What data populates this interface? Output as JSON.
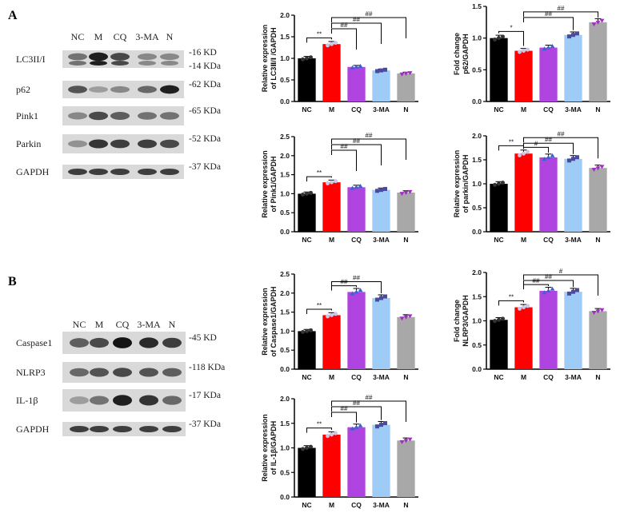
{
  "panels": [
    {
      "letter": "A",
      "lanes": [
        "NC",
        "M",
        "CQ",
        "3-MA",
        "N"
      ],
      "bands": [
        {
          "label": "LC3II/I",
          "kda": [
            "-16 KD",
            "-14 KDa"
          ],
          "intensity": [
            0.55,
            0.95,
            0.75,
            0.45,
            0.45
          ],
          "double": true
        },
        {
          "label": "p62",
          "kda": [
            "-62 KDa"
          ],
          "intensity": [
            0.7,
            0.35,
            0.45,
            0.6,
            0.95
          ],
          "double": false
        },
        {
          "label": "Pink1",
          "kda": [
            "-65 KDa"
          ],
          "intensity": [
            0.45,
            0.75,
            0.65,
            0.55,
            0.55
          ],
          "double": false
        },
        {
          "label": "Parkin",
          "kda": [
            "-52 KDa"
          ],
          "intensity": [
            0.4,
            0.85,
            0.8,
            0.8,
            0.75
          ],
          "double": false
        },
        {
          "label": "GAPDH",
          "kda": [
            "-37 KDa"
          ],
          "intensity": [
            0.8,
            0.8,
            0.8,
            0.8,
            0.8
          ],
          "double": false
        }
      ]
    },
    {
      "letter": "B",
      "lanes": [
        "NC",
        "M",
        "CQ",
        "3-MA",
        "N"
      ],
      "bands": [
        {
          "label": "Caspase1",
          "kda": [
            "-45 KD"
          ],
          "intensity": [
            0.65,
            0.75,
            1.0,
            0.9,
            0.8
          ],
          "double": false
        },
        {
          "label": "NLRP3",
          "kda": [
            "-118 KDa"
          ],
          "intensity": [
            0.6,
            0.7,
            0.75,
            0.7,
            0.65
          ],
          "double": false
        },
        {
          "label": "IL-1β",
          "kda": [
            "-17 KDa"
          ],
          "intensity": [
            0.35,
            0.55,
            0.95,
            0.85,
            0.6
          ],
          "double": false
        },
        {
          "label": "GAPDH",
          "kda": [
            "-37 KDa"
          ],
          "intensity": [
            0.8,
            0.8,
            0.8,
            0.8,
            0.8
          ],
          "double": false
        }
      ]
    }
  ],
  "bar_colors": [
    "#000000",
    "#ff0000",
    "#b044e0",
    "#9fcbf7",
    "#a8a8a8"
  ],
  "point_colors": [
    "#333333",
    "#c8c8e8",
    "#4060d0",
    "#4a4aa0",
    "#a030c0"
  ],
  "chart_data": [
    {
      "type": "bar",
      "ylabel": [
        "Relative expression",
        "of LC3Ⅱ/Ⅰ /GAPDH"
      ],
      "categories": [
        "NC",
        "M",
        "CQ",
        "3-MA",
        "N"
      ],
      "values": [
        1.0,
        1.33,
        0.8,
        0.72,
        0.65
      ],
      "ylim": [
        0,
        2.0
      ],
      "yticks": [
        "0.0",
        "0.5",
        "1.0",
        "1.5",
        "2.0"
      ],
      "sig": [
        {
          "from": 0,
          "to": 1,
          "label": "**"
        },
        {
          "from": 1,
          "to": 2,
          "label": "##"
        },
        {
          "from": 1,
          "to": 3,
          "label": "##"
        },
        {
          "from": 1,
          "to": 4,
          "label": "##"
        }
      ]
    },
    {
      "type": "bar",
      "ylabel": [
        "Fold change",
        "p62/GAPDH"
      ],
      "categories": [
        "NC",
        "M",
        "CQ",
        "3-MA",
        "N"
      ],
      "values": [
        1.0,
        0.8,
        0.85,
        1.05,
        1.25
      ],
      "ylim": [
        0,
        1.5
      ],
      "yticks": [
        "0.0",
        "0.5",
        "1.0",
        "1.5"
      ],
      "sig": [
        {
          "from": 0,
          "to": 1,
          "label": "*"
        },
        {
          "from": 1,
          "to": 3,
          "label": "##"
        },
        {
          "from": 1,
          "to": 4,
          "label": "##"
        }
      ]
    },
    {
      "type": "bar",
      "ylabel": [
        "Relative expression",
        "of Pink1/GAPDH"
      ],
      "categories": [
        "NC",
        "M",
        "CQ",
        "3-MA",
        "N"
      ],
      "values": [
        1.0,
        1.3,
        1.17,
        1.1,
        1.03
      ],
      "ylim": [
        0,
        2.5
      ],
      "yticks": [
        "0.0",
        "0.5",
        "1.0",
        "1.5",
        "2.0",
        "2.5"
      ],
      "sig": [
        {
          "from": 0,
          "to": 1,
          "label": "**"
        },
        {
          "from": 1,
          "to": 2,
          "label": "##"
        },
        {
          "from": 1,
          "to": 3,
          "label": "##"
        },
        {
          "from": 1,
          "to": 4,
          "label": "##"
        }
      ]
    },
    {
      "type": "bar",
      "ylabel": [
        "Relative expression",
        "of parkin/GAPDH"
      ],
      "categories": [
        "NC",
        "M",
        "CQ",
        "3-MA",
        "N"
      ],
      "values": [
        1.0,
        1.63,
        1.55,
        1.52,
        1.33
      ],
      "ylim": [
        0,
        2.0
      ],
      "yticks": [
        "0.0",
        "0.5",
        "1.0",
        "1.5",
        "2.0"
      ],
      "sig": [
        {
          "from": 0,
          "to": 1,
          "label": "**"
        },
        {
          "from": 1,
          "to": 2,
          "label": "#"
        },
        {
          "from": 1,
          "to": 3,
          "label": "##"
        },
        {
          "from": 1,
          "to": 4,
          "label": "##"
        }
      ]
    },
    {
      "type": "bar",
      "ylabel": [
        "Relative expression",
        "of Caspase1/GAPDH"
      ],
      "categories": [
        "NC",
        "M",
        "CQ",
        "3-MA",
        "N"
      ],
      "values": [
        1.0,
        1.42,
        2.03,
        1.87,
        1.37
      ],
      "ylim": [
        0,
        2.5
      ],
      "yticks": [
        "0.0",
        "0.5",
        "1.0",
        "1.5",
        "2.0",
        "2.5"
      ],
      "sig": [
        {
          "from": 0,
          "to": 1,
          "label": "**"
        },
        {
          "from": 1,
          "to": 2,
          "label": "##"
        },
        {
          "from": 1,
          "to": 3,
          "label": "##"
        }
      ]
    },
    {
      "type": "bar",
      "ylabel": [
        "Fold change",
        "NLRP3/GAPDH"
      ],
      "categories": [
        "NC",
        "M",
        "CQ",
        "3-MA",
        "N"
      ],
      "values": [
        1.02,
        1.28,
        1.62,
        1.6,
        1.2
      ],
      "ylim": [
        0,
        2.0
      ],
      "yticks": [
        "0.0",
        "0.5",
        "1.0",
        "1.5",
        "2.0"
      ],
      "sig": [
        {
          "from": 0,
          "to": 1,
          "label": "**"
        },
        {
          "from": 1,
          "to": 2,
          "label": "##"
        },
        {
          "from": 1,
          "to": 3,
          "label": "##"
        },
        {
          "from": 1,
          "to": 4,
          "label": "#"
        }
      ]
    },
    {
      "type": "bar",
      "ylabel": [
        "Relative expression",
        "of IL-1β/GAPDH"
      ],
      "categories": [
        "NC",
        "M",
        "CQ",
        "3-MA",
        "N"
      ],
      "values": [
        1.0,
        1.27,
        1.42,
        1.47,
        1.15
      ],
      "ylim": [
        0,
        2.0
      ],
      "yticks": [
        "0.0",
        "0.5",
        "1.0",
        "1.5",
        "2.0"
      ],
      "sig": [
        {
          "from": 0,
          "to": 1,
          "label": "**"
        },
        {
          "from": 1,
          "to": 2,
          "label": "##"
        },
        {
          "from": 1,
          "to": 3,
          "label": "##"
        },
        {
          "from": 1,
          "to": 4,
          "label": "##"
        }
      ]
    }
  ]
}
